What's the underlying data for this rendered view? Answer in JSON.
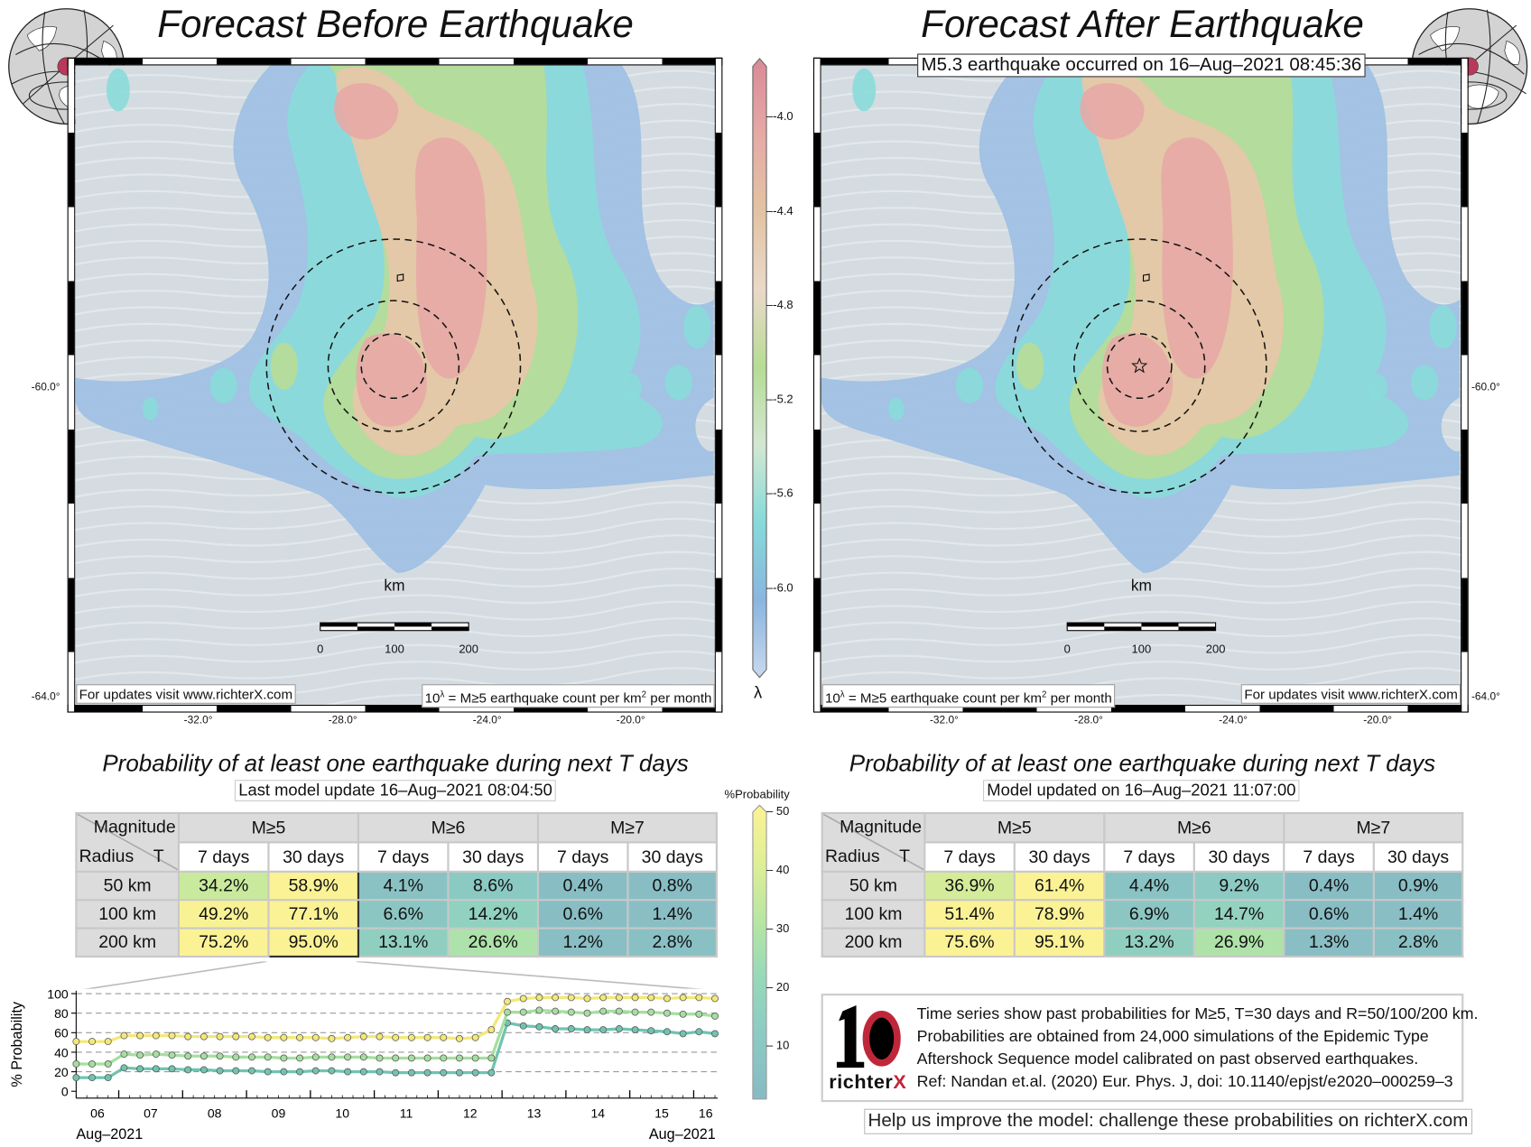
{
  "colors": {
    "accent_red": "#c0263a",
    "epicenter_dot": "#b8395a",
    "map_background": "#d5dce1"
  },
  "before": {
    "title": "Forecast Before Earthquake",
    "footer_left": "For updates visit www.richterX.com",
    "footer_right": "10λ = M≥5 earthquake count per km² per month",
    "km_label": "km",
    "scale_ticks": [
      "0",
      "100",
      "200"
    ],
    "x_ticks": [
      "-32.0°",
      "-28.0°",
      "-24.0°",
      "-20.0°"
    ],
    "y_ticks": [
      "-60.0°",
      "-64.0°"
    ]
  },
  "after": {
    "title": "Forecast After Earthquake",
    "annotation": "M5.3 earthquake occurred on 16–Aug–2021 08:45:36",
    "footer_left": "10λ = M≥5 earthquake count per km² per month",
    "footer_right": "For updates visit www.richterX.com",
    "km_label": "km",
    "scale_ticks": [
      "0",
      "100",
      "200"
    ],
    "x_ticks": [
      "-32.0°",
      "-28.0°",
      "-24.0°",
      "-20.0°"
    ],
    "y_ticks": [
      "-60.0°",
      "-64.0°"
    ],
    "epicenter_icon": "star-icon"
  },
  "lambda_colorbar": {
    "label": "λ",
    "ticks": [
      "-4.0",
      "-4.4",
      "-4.8",
      "-5.2",
      "-5.6",
      "-6.0"
    ],
    "colors": [
      "#d98a96",
      "#e6aaa6",
      "#e2c4a4",
      "#ead9c9",
      "#b6dc94",
      "#d2e7d2",
      "#86dada",
      "#8ab5e0",
      "#c8d8ee"
    ]
  },
  "prob_colorbar": {
    "label": "%Probability",
    "ticks": [
      "50",
      "40",
      "30",
      "20",
      "10"
    ],
    "stops": [
      [
        0,
        "#88bcc4"
      ],
      [
        10,
        "#8ccbc3"
      ],
      [
        20,
        "#98d9b9"
      ],
      [
        30,
        "#b8e6a2"
      ],
      [
        40,
        "#e0ef96"
      ],
      [
        50,
        "#fbf295"
      ]
    ]
  },
  "tables": [
    {
      "title": "Probability of at least one earthquake during next T days",
      "subtitle": "Last model update 16–Aug–2021 08:04:50",
      "corner_top": "Magnitude",
      "corner_bottom_left": "Radius",
      "corner_bottom_right": "T",
      "magnitudes": [
        "M≥5",
        "M≥6",
        "M≥7"
      ],
      "periods": [
        "7 days",
        "30 days",
        "7 days",
        "30 days",
        "7 days",
        "30 days"
      ],
      "rows": [
        {
          "radius": "50 km",
          "values": [
            "34.2%",
            "58.9%",
            "4.1%",
            "8.6%",
            "0.4%",
            "0.8%"
          ]
        },
        {
          "radius": "100 km",
          "values": [
            "49.2%",
            "77.1%",
            "6.6%",
            "14.2%",
            "0.6%",
            "1.4%"
          ]
        },
        {
          "radius": "200 km",
          "values": [
            "75.2%",
            "95.0%",
            "13.1%",
            "26.6%",
            "1.2%",
            "2.8%"
          ]
        }
      ]
    },
    {
      "title": "Probability of at least one earthquake during next T days",
      "subtitle": "Model updated on 16–Aug–2021 11:07:00",
      "corner_top": "Magnitude",
      "corner_bottom_left": "Radius",
      "corner_bottom_right": "T",
      "magnitudes": [
        "M≥5",
        "M≥6",
        "M≥7"
      ],
      "periods": [
        "7 days",
        "30 days",
        "7 days",
        "30 days",
        "7 days",
        "30 days"
      ],
      "rows": [
        {
          "radius": "50 km",
          "values": [
            "36.9%",
            "61.4%",
            "4.4%",
            "9.2%",
            "0.4%",
            "0.9%"
          ]
        },
        {
          "radius": "100 km",
          "values": [
            "51.4%",
            "78.9%",
            "6.9%",
            "14.7%",
            "0.6%",
            "1.4%"
          ]
        },
        {
          "radius": "200 km",
          "values": [
            "75.6%",
            "95.1%",
            "13.2%",
            "26.9%",
            "1.3%",
            "2.8%"
          ]
        }
      ]
    }
  ],
  "chart_data": {
    "type": "line",
    "ylabel": "% Probability",
    "ylim": [
      0,
      100
    ],
    "yticks": [
      "100",
      "80",
      "60",
      "40",
      "20",
      "0"
    ],
    "xticks": [
      "06",
      "07",
      "08",
      "09",
      "10",
      "11",
      "12",
      "13",
      "14",
      "15",
      "16"
    ],
    "xlabel_left": "Aug–2021",
    "xlabel_right": "Aug–2021",
    "xlim": [
      "2021-08-06 08:00",
      "2021-08-16 09:00"
    ],
    "grid": "horizontal dashed",
    "x": [
      "2021-08-06 08:00",
      "2021-08-06 14:00",
      "2021-08-06 20:00",
      "2021-08-07 02:00",
      "2021-08-07 08:00",
      "2021-08-07 14:00",
      "2021-08-07 20:00",
      "2021-08-08 02:00",
      "2021-08-08 08:00",
      "2021-08-08 14:00",
      "2021-08-08 20:00",
      "2021-08-09 02:00",
      "2021-08-09 08:00",
      "2021-08-09 14:00",
      "2021-08-09 20:00",
      "2021-08-10 02:00",
      "2021-08-10 08:00",
      "2021-08-10 14:00",
      "2021-08-10 20:00",
      "2021-08-11 02:00",
      "2021-08-11 08:00",
      "2021-08-11 14:00",
      "2021-08-11 20:00",
      "2021-08-12 02:00",
      "2021-08-12 08:00",
      "2021-08-12 14:00",
      "2021-08-12 20:00",
      "2021-08-13 02:00",
      "2021-08-13 08:00",
      "2021-08-13 14:00",
      "2021-08-13 20:00",
      "2021-08-14 02:00",
      "2021-08-14 08:00",
      "2021-08-14 14:00",
      "2021-08-14 20:00",
      "2021-08-15 02:00",
      "2021-08-15 08:00",
      "2021-08-15 14:00",
      "2021-08-15 20:00",
      "2021-08-16 02:00",
      "2021-08-16 08:00"
    ],
    "series": [
      {
        "color": "#f3e878",
        "values": [
          51,
          51,
          51,
          57,
          57,
          57,
          57,
          56,
          56,
          56,
          56,
          56,
          55,
          55,
          55,
          55,
          54,
          55,
          56,
          56,
          55,
          55,
          55,
          55,
          54,
          55,
          63,
          92,
          95,
          96,
          96,
          96,
          95,
          96,
          96,
          96,
          96,
          95,
          96,
          96,
          95
        ]
      },
      {
        "color": "#a5df9f",
        "values": [
          28,
          28,
          28,
          38,
          37,
          38,
          37,
          36,
          36,
          36,
          35,
          35,
          35,
          34,
          34,
          35,
          35,
          35,
          35,
          34,
          34,
          34,
          34,
          34,
          34,
          34,
          34,
          81,
          81,
          83,
          82,
          81,
          80,
          82,
          82,
          81,
          81,
          80,
          79,
          79,
          77
        ]
      },
      {
        "color": "#6fc4b0",
        "values": [
          14,
          14,
          14,
          24,
          23,
          23,
          23,
          22,
          22,
          21,
          21,
          21,
          20,
          20,
          20,
          21,
          21,
          20,
          20,
          20,
          19,
          19,
          19,
          19,
          19,
          19,
          19,
          70,
          67,
          66,
          64,
          64,
          63,
          63,
          64,
          63,
          62,
          61,
          59,
          61,
          59
        ]
      }
    ]
  },
  "info": {
    "logo_text": "richterX",
    "lines": [
      "Time series show past probabilities for M≥5, T=30 days and R=50/100/200 km.",
      "Probabilities are obtained from 24,000 simulations of the Epidemic Type",
      "Aftershock Sequence model calibrated on past observed earthquakes.",
      "Ref: Nandan et.al. (2020) Eur. Phys. J, doi: 10.1140/epjst/e2020–000259–3"
    ]
  },
  "help_text": "Help us improve the model: challenge these probabilities on richterX.com"
}
